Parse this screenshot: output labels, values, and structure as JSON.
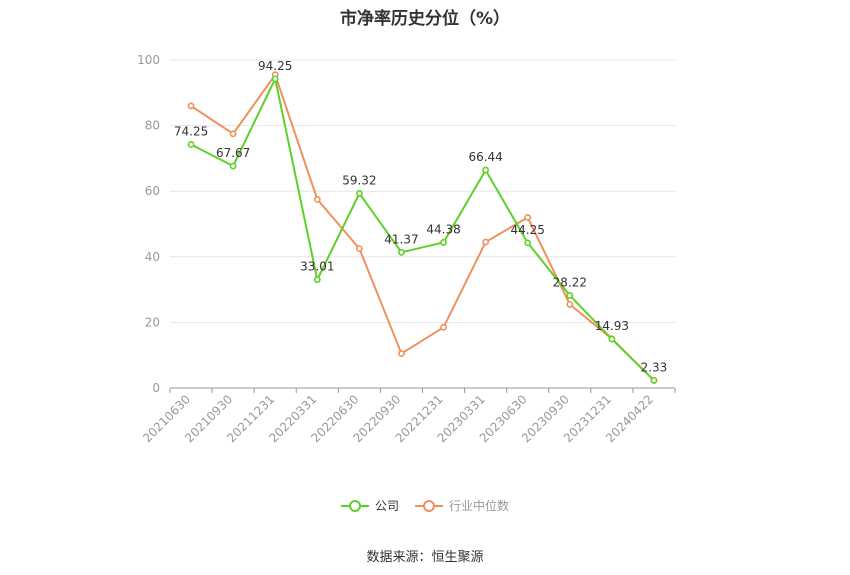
{
  "chart_data": {
    "type": "line",
    "title": "市净率历史分位（%）",
    "categories": [
      "20210630",
      "20210930",
      "20211231",
      "20220331",
      "20220630",
      "20220930",
      "20221231",
      "20230331",
      "20230630",
      "20230930",
      "20231231",
      "20240422"
    ],
    "ylim": [
      0,
      100
    ],
    "yticks": [
      0,
      20,
      40,
      60,
      80,
      100
    ],
    "grid": true,
    "legend_position": "bottom",
    "series": [
      {
        "name": "公司",
        "color": "#5fcf2a",
        "values": [
          74.25,
          67.67,
          94.25,
          33.01,
          59.32,
          41.37,
          44.38,
          66.44,
          44.25,
          28.22,
          14.93,
          2.33
        ],
        "labels": [
          "74.25",
          "67.67",
          "94.25",
          "33.01",
          "59.32",
          "41.37",
          "44.38",
          "66.44",
          "44.25",
          "28.22",
          "14.93",
          "2.33"
        ]
      },
      {
        "name": "行业中位数",
        "color": "#f0905f",
        "values": [
          86,
          77.5,
          95.5,
          57.5,
          42.5,
          10.5,
          18.5,
          44.5,
          52,
          25.5,
          15,
          2.3
        ]
      }
    ]
  },
  "source_text": "数据来源：恒生聚源"
}
